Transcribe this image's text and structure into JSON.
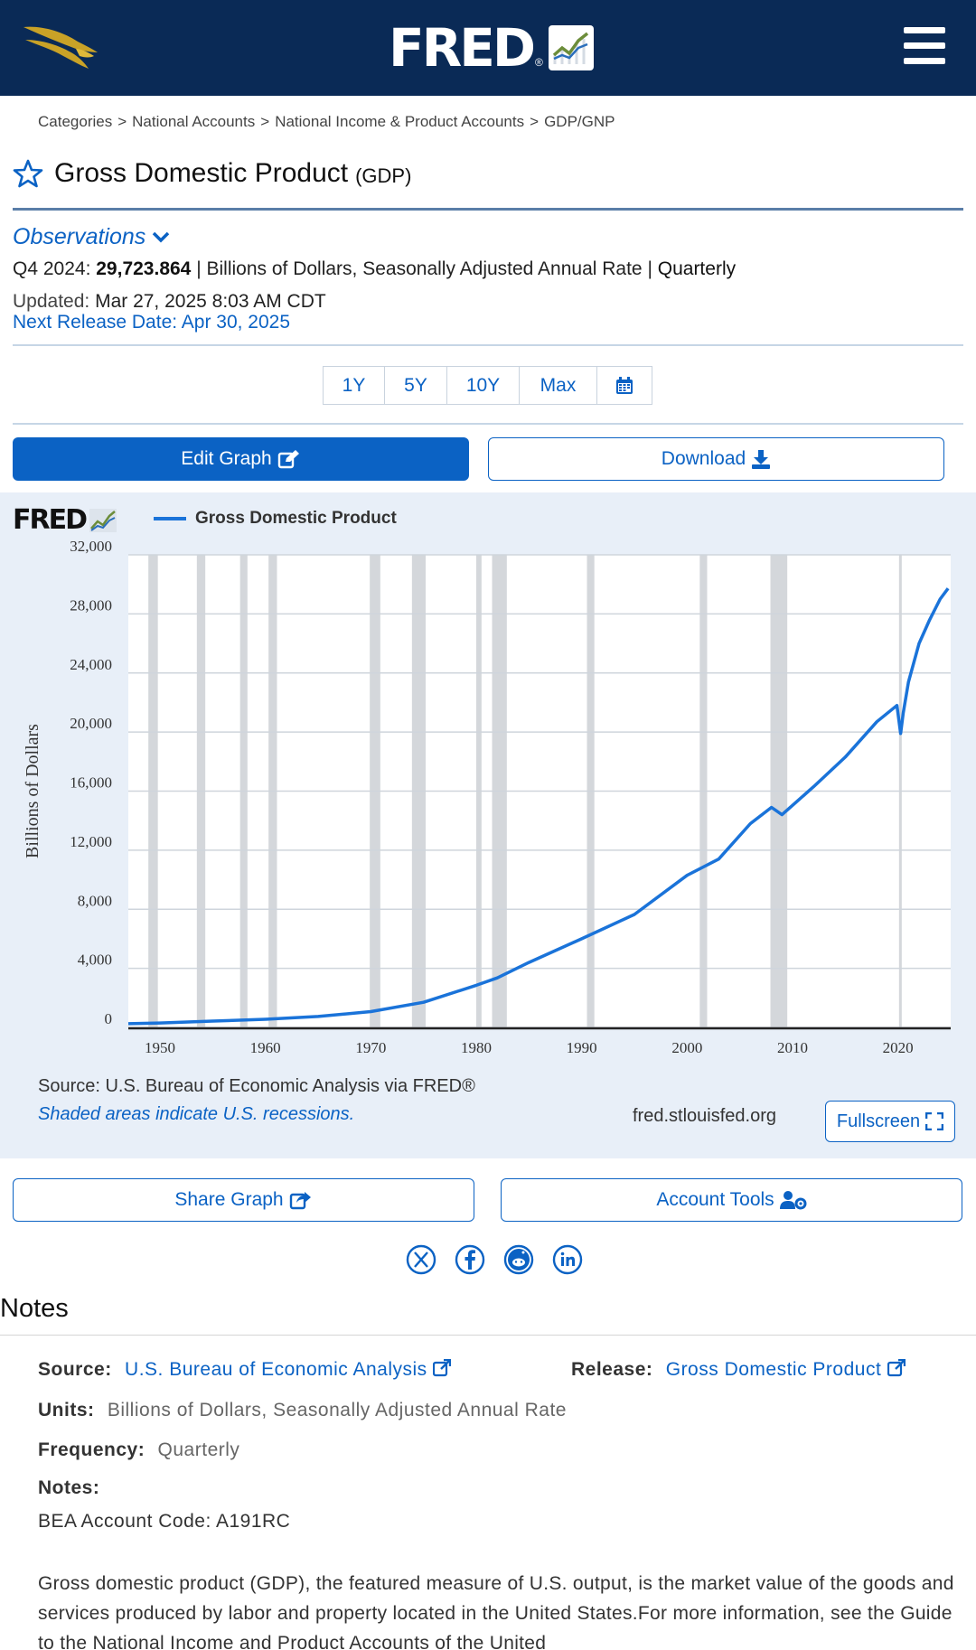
{
  "header": {
    "brand": "FRED",
    "brand_mark": "®",
    "colors": {
      "navy": "#0a2a56",
      "gold": "#c9a227",
      "link": "#0b62c4",
      "series": "#1a73d9"
    }
  },
  "breadcrumb": [
    "Categories",
    "National Accounts",
    "National Income & Product Accounts",
    "GDP/GNP"
  ],
  "series": {
    "title": "Gross Domestic Product",
    "code": "(GDP)",
    "observations_label": "Observations",
    "latest_period": "Q4 2024:",
    "latest_value": "29,723.864",
    "latest_units": "| Billions of Dollars, Seasonally Adjusted Annual Rate |",
    "latest_frequency": "Quarterly",
    "updated_label": "Updated:",
    "updated_value": "Mar 27, 2025 8:03 AM CDT",
    "next_release": "Next Release Date: Apr 30, 2025"
  },
  "ranges": [
    "1Y",
    "5Y",
    "10Y",
    "Max"
  ],
  "actions": {
    "edit": "Edit Graph",
    "download": "Download",
    "share": "Share Graph",
    "account": "Account Tools",
    "fullscreen": "Fullscreen"
  },
  "graph": {
    "logo": "FRED",
    "source": "Source: U.S. Bureau of Economic Analysis via FRED®",
    "recessions_note": "Shaded areas indicate U.S. recessions.",
    "site": "fred.stlouisfed.org"
  },
  "chart_data": {
    "type": "line",
    "ylabel": "Billions of Dollars",
    "xlabel": "",
    "xlim": [
      1947,
      2025
    ],
    "ylim": [
      0,
      32000
    ],
    "x_ticks": [
      "1950",
      "1960",
      "1970",
      "1980",
      "1990",
      "2000",
      "2010",
      "2020"
    ],
    "y_ticks": [
      "0",
      "4,000",
      "8,000",
      "12,000",
      "16,000",
      "20,000",
      "24,000",
      "28,000",
      "32,000"
    ],
    "grid": true,
    "legend": "top-left",
    "series": [
      {
        "name": "Gross Domestic Product",
        "color": "#1a73d9",
        "x": [
          1947,
          1950,
          1955,
          1960,
          1965,
          1970,
          1975,
          1980,
          1982,
          1985,
          1990,
          1995,
          2000,
          2003,
          2006,
          2008,
          2009,
          2012,
          2015,
          2018,
          2019.9,
          2020.25,
          2020.5,
          2021,
          2022,
          2023,
          2024,
          2024.75
        ],
        "y": [
          250,
          300,
          430,
          550,
          740,
          1070,
          1700,
          2850,
          3350,
          4400,
          6000,
          7650,
          10300,
          11400,
          13800,
          14900,
          14400,
          16300,
          18300,
          20700,
          21800,
          19900,
          21300,
          23400,
          26000,
          27600,
          29000,
          29724
        ]
      }
    ],
    "recessions": [
      [
        1948.9,
        1949.8
      ],
      [
        1953.5,
        1954.3
      ],
      [
        1957.6,
        1958.3
      ],
      [
        1960.3,
        1961.1
      ],
      [
        1969.9,
        1970.9
      ],
      [
        1973.9,
        1975.2
      ],
      [
        1980.0,
        1980.5
      ],
      [
        1981.5,
        1982.9
      ],
      [
        1990.5,
        1991.2
      ],
      [
        2001.2,
        2001.9
      ],
      [
        2007.9,
        2009.5
      ],
      [
        2020.1,
        2020.3
      ]
    ]
  },
  "social": [
    "x-icon",
    "facebook-icon",
    "reddit-icon",
    "linkedin-icon"
  ],
  "notes": {
    "heading": "Notes",
    "source_label": "Source:",
    "source_value": "U.S. Bureau of Economic Analysis",
    "release_label": "Release:",
    "release_value": "Gross Domestic Product",
    "units_label": "Units:",
    "units_value": "Billions of Dollars, Seasonally Adjusted Annual Rate",
    "frequency_label": "Frequency:",
    "frequency_value": "Quarterly",
    "notes_label": "Notes:",
    "account_code": "BEA Account Code: A191RC",
    "paragraph": "Gross domestic product (GDP), the featured measure of U.S. output, is the market value of the goods and services produced by labor and property located in the United States.For more information, see the Guide to the National Income and Product Accounts of the United"
  }
}
